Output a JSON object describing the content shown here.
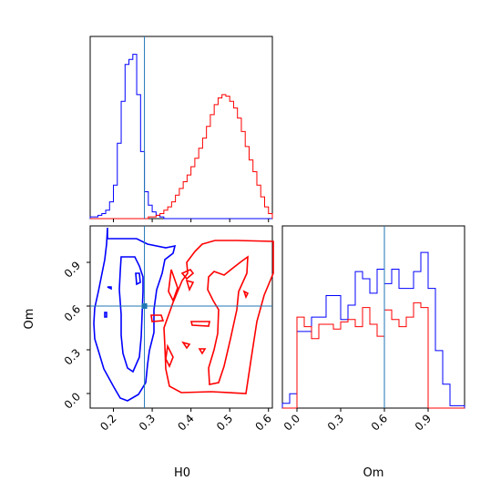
{
  "chart_data": [
    {
      "type": "histogram",
      "panel": "H0 marginal",
      "xlim": [
        0.14,
        0.61
      ],
      "bins": [
        0.14,
        0.15,
        0.16,
        0.17,
        0.18,
        0.19,
        0.2,
        0.21,
        0.22,
        0.23,
        0.24,
        0.25,
        0.26,
        0.27,
        0.28,
        0.29,
        0.3,
        0.31,
        0.32,
        0.33,
        0.34,
        0.35,
        0.36,
        0.37,
        0.38,
        0.39,
        0.4,
        0.41,
        0.42,
        0.43,
        0.44,
        0.45,
        0.46,
        0.47,
        0.48,
        0.49,
        0.5,
        0.51,
        0.52,
        0.53,
        0.54,
        0.55,
        0.56,
        0.57,
        0.58,
        0.59,
        0.6,
        0.61
      ],
      "series": [
        {
          "color": "#0000ff",
          "values": [
            1,
            1,
            2,
            3,
            5,
            10,
            20,
            45,
            70,
            92,
            95,
            98,
            74,
            40,
            16,
            8,
            4,
            2,
            1,
            0,
            0,
            0,
            0,
            0,
            0,
            0,
            0,
            0,
            0,
            0,
            0,
            0,
            0,
            0,
            0,
            0,
            0,
            0,
            0,
            0,
            0,
            0,
            0,
            0,
            0,
            0,
            0
          ]
        },
        {
          "color": "#ff0000",
          "values": [
            0,
            0,
            0,
            0,
            0,
            0,
            0,
            0,
            0,
            0,
            0,
            0,
            0,
            0,
            0,
            1,
            1,
            2,
            3,
            5,
            7,
            10,
            14,
            18,
            22,
            26,
            31,
            36,
            42,
            48,
            55,
            62,
            68,
            72,
            74,
            73,
            70,
            66,
            60,
            52,
            43,
            35,
            28,
            20,
            13,
            7,
            3
          ]
        }
      ],
      "truth": 0.28
    },
    {
      "type": "contour",
      "panel": "H0 vs Om joint",
      "xlabel": "H0",
      "ylabel": "Om",
      "xlim": [
        0.14,
        0.61
      ],
      "ylim": [
        -0.1,
        1.15
      ],
      "xticks": [
        "0.2",
        "0.3",
        "0.4",
        "0.5",
        "0.6"
      ],
      "yticks": [
        "0.0",
        "0.3",
        "0.6",
        "0.9"
      ],
      "series": [
        {
          "color": "#0000ff",
          "center": [
            0.255,
            0.55
          ],
          "levels": [
            "outer",
            "inner"
          ]
        },
        {
          "color": "#ff0000",
          "center": [
            0.48,
            0.52
          ],
          "levels": [
            "outer",
            "inner"
          ]
        }
      ],
      "truth": [
        0.28,
        0.6
      ]
    },
    {
      "type": "histogram",
      "panel": "Om marginal",
      "xlabel": "Om",
      "xlim": [
        -0.1,
        1.15
      ],
      "xticks": [
        "0.0",
        "0.3",
        "0.6",
        "0.9"
      ],
      "bins": [
        -0.1,
        -0.05,
        0.0,
        0.05,
        0.1,
        0.15,
        0.2,
        0.25,
        0.3,
        0.35,
        0.4,
        0.45,
        0.5,
        0.55,
        0.6,
        0.65,
        0.7,
        0.75,
        0.8,
        0.85,
        0.9,
        0.95,
        1.0,
        1.05,
        1.1,
        1.15
      ],
      "series": [
        {
          "color": "#0000ff",
          "values": [
            2,
            6,
            32,
            32,
            38,
            38,
            47,
            47,
            37,
            43,
            57,
            54,
            48,
            58,
            52,
            58,
            50,
            50,
            57,
            65,
            50,
            24,
            10,
            1,
            1
          ]
        },
        {
          "color": "#ff0000",
          "values": [
            0,
            0,
            38,
            34,
            29,
            35,
            35,
            33,
            36,
            37,
            34,
            42,
            35,
            30,
            41,
            37,
            34,
            38,
            44,
            42,
            0,
            0,
            0,
            0,
            0
          ]
        }
      ],
      "truth": 0.6
    }
  ]
}
